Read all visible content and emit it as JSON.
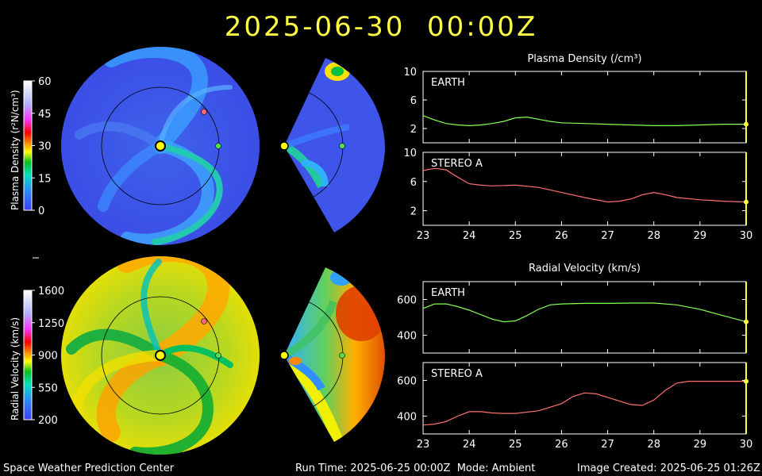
{
  "title": "2025-06-30  00:00Z",
  "footer": {
    "left": "Space Weather Prediction Center",
    "center": "Run Time: 2025-06-25 00:00Z  Mode: Ambient",
    "right": "Image Created: 2025-06-25 01:26Z"
  },
  "colorbars": {
    "density": {
      "label": "Plasma Density (r²N/cm³)",
      "ticks": [
        "60",
        "45",
        "30",
        "15",
        "0"
      ]
    },
    "velocity": {
      "label": "Radial Velocity (km/s)",
      "ticks": [
        "1600",
        "1250",
        "900",
        "550",
        "200"
      ]
    }
  },
  "colors": {
    "earth_line": "#88ff55",
    "stereo_line": "#ff7070",
    "sun": "#ffff00",
    "earth_marker": "#55dd55",
    "stereo_marker": "#ff6677",
    "axis_frame": "#ffffff",
    "current_time_marker": "#ffff44"
  },
  "chart_data": [
    {
      "type": "line",
      "title": "Plasma Density (/cm³)",
      "panel": "EARTH",
      "x": [
        23,
        23.25,
        23.5,
        23.75,
        24,
        24.25,
        24.5,
        24.75,
        25,
        25.25,
        25.5,
        25.75,
        26,
        26.5,
        27,
        27.5,
        28,
        28.5,
        29,
        29.5,
        30
      ],
      "values": [
        3.8,
        3.2,
        2.7,
        2.5,
        2.4,
        2.5,
        2.7,
        3.0,
        3.5,
        3.6,
        3.3,
        3.0,
        2.8,
        2.7,
        2.6,
        2.5,
        2.4,
        2.4,
        2.5,
        2.6,
        2.6
      ],
      "ylim": [
        0,
        10
      ],
      "yticks": [
        2,
        6,
        10
      ],
      "xticks": [
        23,
        24,
        25,
        26,
        27,
        28,
        29,
        30
      ]
    },
    {
      "type": "line",
      "title": "",
      "panel": "STEREO A",
      "x": [
        23,
        23.25,
        23.5,
        23.75,
        24,
        24.25,
        24.5,
        25,
        25.5,
        26,
        26.5,
        27,
        27.25,
        27.5,
        27.75,
        28,
        28.25,
        28.5,
        29,
        29.5,
        30
      ],
      "values": [
        7.5,
        7.8,
        7.6,
        6.6,
        5.7,
        5.5,
        5.4,
        5.5,
        5.2,
        4.5,
        3.8,
        3.2,
        3.3,
        3.6,
        4.2,
        4.5,
        4.2,
        3.8,
        3.5,
        3.3,
        3.2
      ],
      "ylim": [
        0,
        10
      ],
      "yticks": [
        2,
        6,
        10
      ],
      "xticks": [
        23,
        24,
        25,
        26,
        27,
        28,
        29,
        30
      ]
    },
    {
      "type": "line",
      "title": "Radial Velocity (km/s)",
      "panel": "EARTH",
      "x": [
        23,
        23.25,
        23.5,
        23.75,
        24,
        24.25,
        24.5,
        24.75,
        25,
        25.25,
        25.5,
        25.75,
        26,
        26.5,
        27,
        27.5,
        28,
        28.5,
        29,
        29.5,
        30
      ],
      "values": [
        550,
        575,
        575,
        560,
        540,
        515,
        490,
        475,
        480,
        510,
        545,
        570,
        575,
        578,
        578,
        580,
        580,
        570,
        545,
        510,
        475
      ],
      "ylim": [
        300,
        700
      ],
      "yticks": [
        400,
        600
      ],
      "xticks": [
        23,
        24,
        25,
        26,
        27,
        28,
        29,
        30
      ]
    },
    {
      "type": "line",
      "title": "",
      "panel": "STEREO A",
      "x": [
        23,
        23.25,
        23.5,
        23.75,
        24,
        24.25,
        24.5,
        24.75,
        25,
        25.5,
        26,
        26.25,
        26.5,
        26.75,
        27,
        27.25,
        27.5,
        27.75,
        28,
        28.25,
        28.5,
        28.75,
        29,
        29.5,
        30
      ],
      "values": [
        350,
        355,
        370,
        400,
        425,
        425,
        418,
        415,
        415,
        430,
        470,
        510,
        530,
        525,
        505,
        485,
        465,
        460,
        490,
        545,
        585,
        595,
        595,
        595,
        595
      ],
      "ylim": [
        300,
        700
      ],
      "yticks": [
        400,
        600
      ],
      "xticks": [
        23,
        24,
        25,
        26,
        27,
        28,
        29,
        30
      ]
    }
  ]
}
